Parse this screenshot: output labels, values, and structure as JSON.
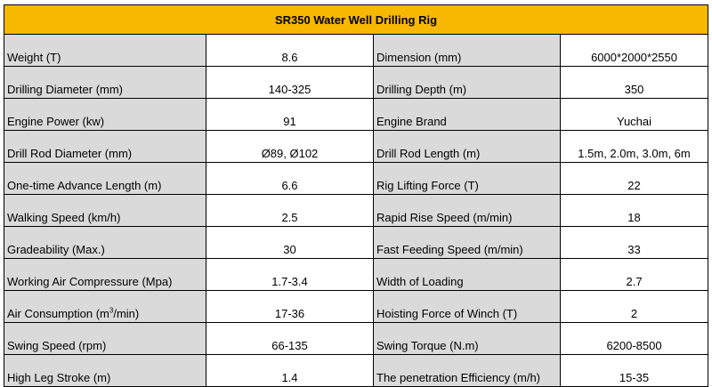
{
  "title": "SR350 Water Well Drilling Rig",
  "rows": [
    {
      "label1": "Weight (T)",
      "value1": "8.6",
      "label2": "Dimension (mm)",
      "value2": "6000*2000*2550"
    },
    {
      "label1": "Drilling Diameter (mm)",
      "value1": "140-325",
      "label2": "Drilling Depth (m)",
      "value2": "350"
    },
    {
      "label1": "Engine Power (kw)",
      "value1": "91",
      "label2": "Engine Brand",
      "value2": "Yuchai"
    },
    {
      "label1": "Drill Rod Diameter (mm)",
      "value1": "Ø89, Ø102",
      "label2": "Drill Rod Length (m)",
      "value2": "1.5m, 2.0m, 3.0m, 6m"
    },
    {
      "label1": "One-time Advance Length (m)",
      "value1": "6.6",
      "label2": "Rig Lifting Force (T)",
      "value2": "22"
    },
    {
      "label1": "Walking Speed (km/h)",
      "value1": "2.5",
      "label2": "Rapid Rise Speed (m/min)",
      "value2": "18"
    },
    {
      "label1": "Gradeability (Max.)",
      "value1": "30",
      "label2": "Fast Feeding Speed (m/min)",
      "value2": "33"
    },
    {
      "label1": "Working Air Compressure (Mpa)",
      "value1": "1.7-3.4",
      "label2": "Width of Loading",
      "value2": "2.7"
    },
    {
      "label1_pre": "Air Consumption (m",
      "label1_sup": "3",
      "label1_post": "/min)",
      "value1": "17-36",
      "label2": "Hoisting Force of Winch (T)",
      "value2": "2"
    },
    {
      "label1": "Swing Speed (rpm)",
      "value1": "66-135",
      "label2": "Swing Torque (N.m)",
      "value2": "6200-8500"
    },
    {
      "label1": "High Leg Stroke (m)",
      "value1": "1.4",
      "label2": "The penetration Efficiency (m/h)",
      "value2": "15-35"
    }
  ]
}
